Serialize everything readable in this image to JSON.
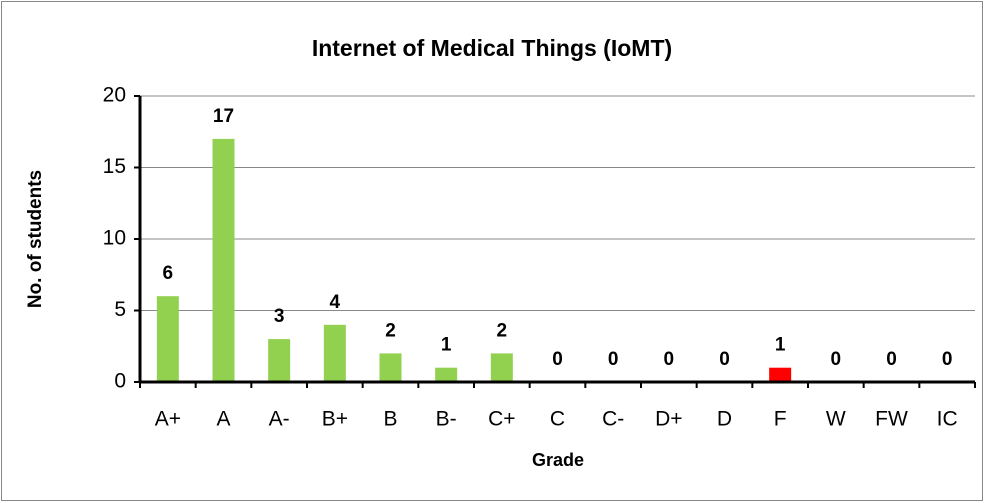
{
  "chart_data": {
    "type": "bar",
    "title": "Internet of Medical Things (IoMT)",
    "x_label": "Grade",
    "y_label": "No. of students",
    "categories": [
      "A+",
      "A",
      "A-",
      "B+",
      "B",
      "B-",
      "C+",
      "C",
      "C-",
      "D+",
      "D",
      "F",
      "W",
      "FW",
      "IC"
    ],
    "values": [
      6,
      17,
      3,
      4,
      2,
      1,
      2,
      0,
      0,
      0,
      0,
      1,
      0,
      0,
      0
    ],
    "colors": [
      "#92d050",
      "#92d050",
      "#92d050",
      "#92d050",
      "#92d050",
      "#92d050",
      "#92d050",
      "#92d050",
      "#92d050",
      "#92d050",
      "#92d050",
      "#ff0000",
      "#92d050",
      "#92d050",
      "#92d050"
    ],
    "ylim": [
      0,
      20
    ],
    "yticks": [
      0,
      5,
      10,
      15,
      20
    ],
    "grid": true
  }
}
